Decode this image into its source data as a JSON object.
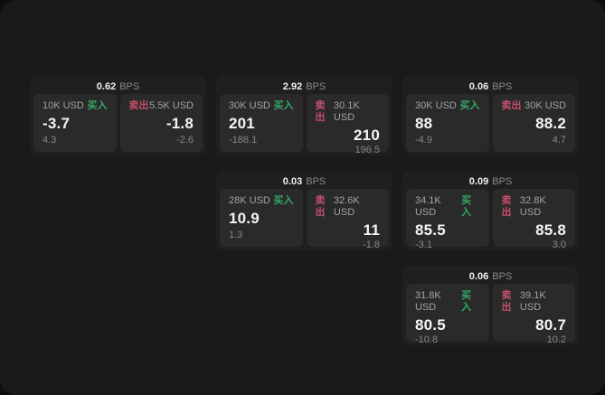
{
  "labels": {
    "bps_unit": "BPS",
    "buy": "买入",
    "sell": "卖出"
  },
  "colors": {
    "surface": "#1a1a1a",
    "card": "#1f1f1f",
    "tile": "#2a2a2a",
    "buy_green": "#35a866",
    "sell_red": "#c4506a"
  },
  "cards": [
    {
      "bps": "0.62",
      "buy": {
        "amount": "10K USD",
        "value": "-3.7",
        "sub": "4.3"
      },
      "sell": {
        "amount": "5.5K USD",
        "value": "-1.8",
        "sub": "-2.6"
      }
    },
    {
      "bps": "2.92",
      "buy": {
        "amount": "30K USD",
        "value": "201",
        "sub": "-188.1"
      },
      "sell": {
        "amount": "30.1K USD",
        "value": "210",
        "sub": "196.5"
      }
    },
    {
      "bps": "0.06",
      "buy": {
        "amount": "30K USD",
        "value": "88",
        "sub": "-4.9"
      },
      "sell": {
        "amount": "30K USD",
        "value": "88.2",
        "sub": "4.7"
      }
    },
    {
      "bps": "0.03",
      "buy": {
        "amount": "28K USD",
        "value": "10.9",
        "sub": "1.3"
      },
      "sell": {
        "amount": "32.6K USD",
        "value": "11",
        "sub": "-1.8"
      }
    },
    {
      "bps": "0.09",
      "buy": {
        "amount": "34.1K USD",
        "value": "85.5",
        "sub": "-3.1"
      },
      "sell": {
        "amount": "32.8K USD",
        "value": "85.8",
        "sub": "3.0"
      }
    },
    {
      "bps": "0.06",
      "buy": {
        "amount": "31.8K USD",
        "value": "80.5",
        "sub": "-10.8"
      },
      "sell": {
        "amount": "39.1K USD",
        "value": "80.7",
        "sub": "10.2"
      }
    }
  ]
}
